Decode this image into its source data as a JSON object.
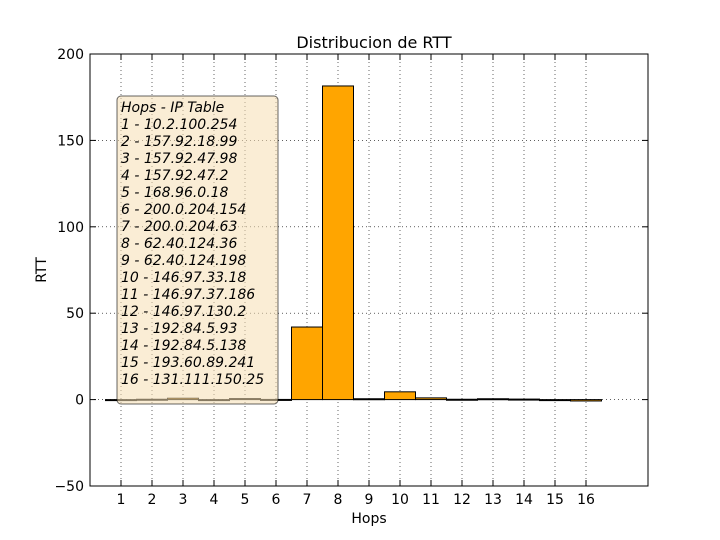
{
  "chart_data": {
    "type": "bar",
    "title": "Distribucion de RTT",
    "xlabel": "Hops",
    "ylabel": "RTT",
    "ylim": [
      -50,
      200
    ],
    "yticks": [
      -50,
      0,
      50,
      100,
      150,
      200
    ],
    "xlim": [
      0,
      18
    ],
    "categories": [
      "1",
      "2",
      "3",
      "4",
      "5",
      "6",
      "7",
      "8",
      "9",
      "10",
      "11",
      "12",
      "13",
      "14",
      "15",
      "16"
    ],
    "values": [
      -0.3,
      0.2,
      0.8,
      -0.2,
      0.6,
      0.1,
      42,
      181.5,
      0.5,
      4.5,
      1,
      0.2,
      0.5,
      0.3,
      -0.2,
      -0.8
    ],
    "bar_color": "#ffa500",
    "grid": true,
    "annotation": {
      "title": "Hops - IP Table",
      "lines": [
        "1 - 10.2.100.254",
        "2 - 157.92.18.99",
        "3 - 157.92.47.98",
        "4 - 157.92.47.2",
        "5 - 168.96.0.18",
        "6 - 200.0.204.154",
        "7 - 200.0.204.63",
        "8 - 62.40.124.36",
        "9 - 62.40.124.198",
        "10 - 146.97.33.18",
        "11 - 146.97.37.186",
        "12 - 146.97.130.2",
        "13 - 192.84.5.93",
        "14 - 192.84.5.138",
        "15 - 193.60.89.241",
        "16 - 131.111.150.25"
      ],
      "placement": "upper-left",
      "background": "#f5deb3"
    }
  }
}
